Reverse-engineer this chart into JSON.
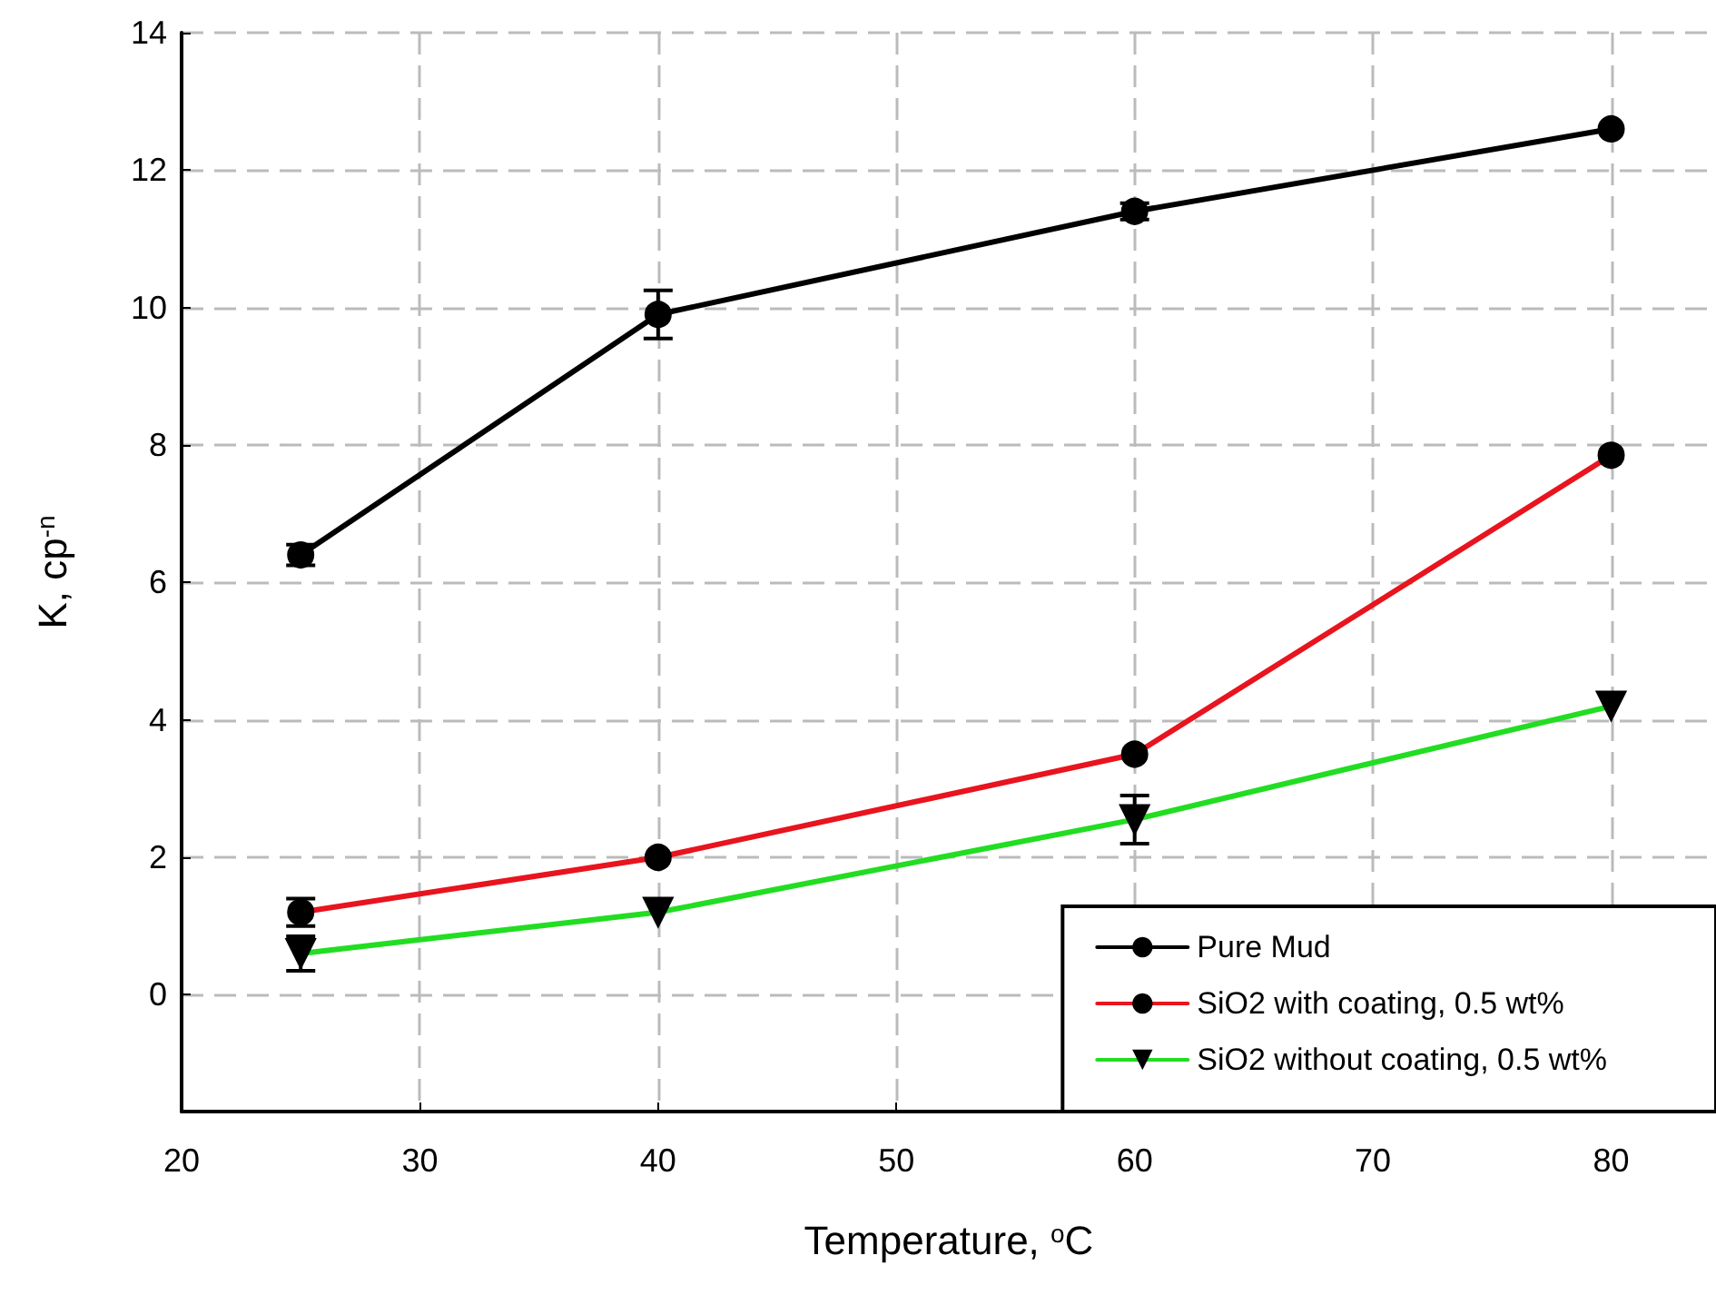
{
  "chart_data": {
    "type": "line",
    "xlabel": "Temperature, $^{o}$C",
    "ylabel": "K, cp$^{-n}$",
    "x": [
      25,
      40,
      60,
      80
    ],
    "series": [
      {
        "name": "Pure Mud",
        "color": "#000000",
        "marker": "circle",
        "values": [
          6.4,
          9.9,
          11.4,
          12.6
        ],
        "errors": [
          0.15,
          0.35,
          0.12,
          null
        ]
      },
      {
        "name": "SiO2 with coating, 0.5 wt%",
        "color": "#e8141e",
        "marker": "circle",
        "values": [
          1.2,
          2.0,
          3.5,
          7.85
        ],
        "errors": [
          0.2,
          null,
          null,
          null
        ]
      },
      {
        "name": "SiO2 without coating, 0.5 wt%",
        "color": "#22dd22",
        "marker": "triangle",
        "values": [
          0.6,
          1.2,
          2.55,
          4.2
        ],
        "errors": [
          0.25,
          null,
          0.35,
          null
        ]
      }
    ],
    "xlim": [
      20,
      84.4
    ],
    "xticks": [
      20,
      30,
      40,
      50,
      60,
      70,
      80
    ],
    "ylim": [
      -1.7,
      14
    ],
    "yticks": [
      0,
      2,
      4,
      6,
      8,
      10,
      12,
      14
    ],
    "grid": true,
    "legend": "bottom right",
    "line_style": "solid"
  }
}
